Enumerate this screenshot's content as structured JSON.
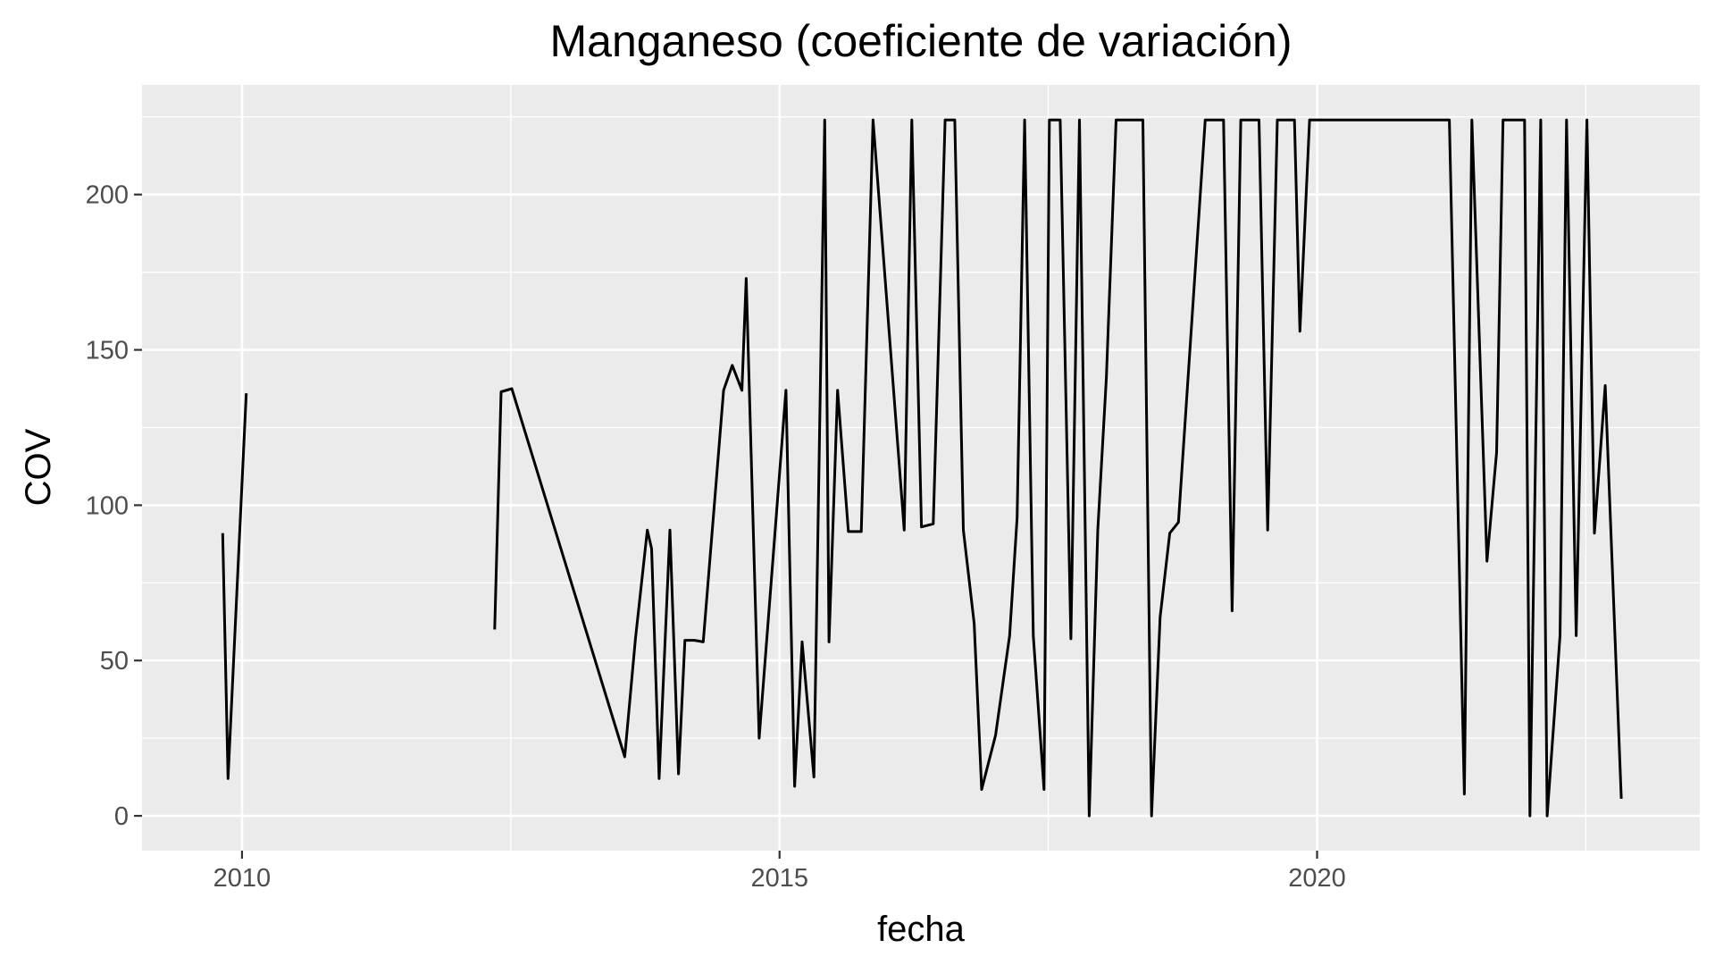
{
  "chart_data": {
    "type": "line",
    "title": "Manganeso (coeficiente de variación)",
    "xlabel": "fecha",
    "ylabel": "COV",
    "xlim": [
      2009.07,
      2023.56
    ],
    "ylim": [
      -11.2,
      235.3
    ],
    "x_ticks": [
      {
        "value": 2010,
        "label": "2010"
      },
      {
        "value": 2015,
        "label": "2015"
      },
      {
        "value": 2020,
        "label": "2020"
      }
    ],
    "y_ticks": [
      {
        "value": 0,
        "label": "0"
      },
      {
        "value": 50,
        "label": "50"
      },
      {
        "value": 100,
        "label": "100"
      },
      {
        "value": 150,
        "label": "150"
      },
      {
        "value": 200,
        "label": "200"
      }
    ],
    "grid": true,
    "legend": "none",
    "line_color": "#000000",
    "panel_background": "#ebebeb",
    "series": [
      {
        "segments": [
          [
            [
              2009.82,
              91
            ],
            [
              2009.87,
              12
            ],
            [
              2010.04,
              136
            ]
          ],
          [
            [
              2012.35,
              60
            ],
            [
              2012.41,
              136.5
            ],
            [
              2012.51,
              137.5
            ],
            [
              2013.56,
              19
            ],
            [
              2013.66,
              57
            ],
            [
              2013.77,
              92
            ],
            [
              2013.81,
              86
            ],
            [
              2013.88,
              12
            ],
            [
              2013.98,
              92
            ],
            [
              2014.06,
              13.5
            ],
            [
              2014.12,
              56.5
            ],
            [
              2014.21,
              56.5
            ],
            [
              2014.29,
              56
            ],
            [
              2014.48,
              137
            ],
            [
              2014.56,
              145
            ],
            [
              2014.65,
              137
            ],
            [
              2014.69,
              173
            ],
            [
              2014.81,
              25
            ],
            [
              2015.06,
              137
            ],
            [
              2015.14,
              9.5
            ],
            [
              2015.21,
              56
            ],
            [
              2015.32,
              12.5
            ],
            [
              2015.42,
              224
            ],
            [
              2015.46,
              56
            ],
            [
              2015.54,
              137
            ],
            [
              2015.64,
              91.5
            ],
            [
              2015.76,
              91.5
            ],
            [
              2015.87,
              224
            ],
            [
              2016.16,
              92
            ],
            [
              2016.23,
              224
            ],
            [
              2016.32,
              93
            ],
            [
              2016.43,
              94
            ],
            [
              2016.54,
              224
            ],
            [
              2016.63,
              224
            ],
            [
              2016.71,
              92
            ],
            [
              2016.81,
              62
            ],
            [
              2016.88,
              8.5
            ],
            [
              2017.01,
              26
            ],
            [
              2017.14,
              58
            ],
            [
              2017.21,
              96
            ],
            [
              2017.28,
              224
            ],
            [
              2017.36,
              58
            ],
            [
              2017.46,
              8.5
            ],
            [
              2017.51,
              224
            ],
            [
              2017.61,
              224
            ],
            [
              2017.71,
              57
            ],
            [
              2017.79,
              224
            ],
            [
              2017.88,
              0
            ],
            [
              2017.96,
              92
            ],
            [
              2018.04,
              141
            ],
            [
              2018.13,
              224
            ],
            [
              2018.38,
              224
            ],
            [
              2018.46,
              0
            ],
            [
              2018.54,
              64
            ],
            [
              2018.63,
              91
            ],
            [
              2018.71,
              94.5
            ],
            [
              2018.96,
              224
            ],
            [
              2019.13,
              224
            ],
            [
              2019.21,
              66
            ],
            [
              2019.29,
              224
            ],
            [
              2019.46,
              224
            ],
            [
              2019.54,
              92
            ],
            [
              2019.63,
              224
            ],
            [
              2019.79,
              224
            ],
            [
              2019.84,
              156
            ],
            [
              2019.93,
              224
            ],
            [
              2021.23,
              224
            ],
            [
              2021.37,
              7
            ],
            [
              2021.44,
              224
            ],
            [
              2021.58,
              82
            ],
            [
              2021.67,
              117
            ],
            [
              2021.73,
              224
            ],
            [
              2021.93,
              224
            ],
            [
              2021.98,
              0
            ],
            [
              2022.08,
              224
            ],
            [
              2022.14,
              0
            ],
            [
              2022.26,
              58
            ],
            [
              2022.32,
              224
            ],
            [
              2022.41,
              58
            ],
            [
              2022.51,
              224
            ],
            [
              2022.58,
              91
            ],
            [
              2022.68,
              138.5
            ],
            [
              2022.83,
              5.5
            ]
          ]
        ]
      }
    ]
  }
}
